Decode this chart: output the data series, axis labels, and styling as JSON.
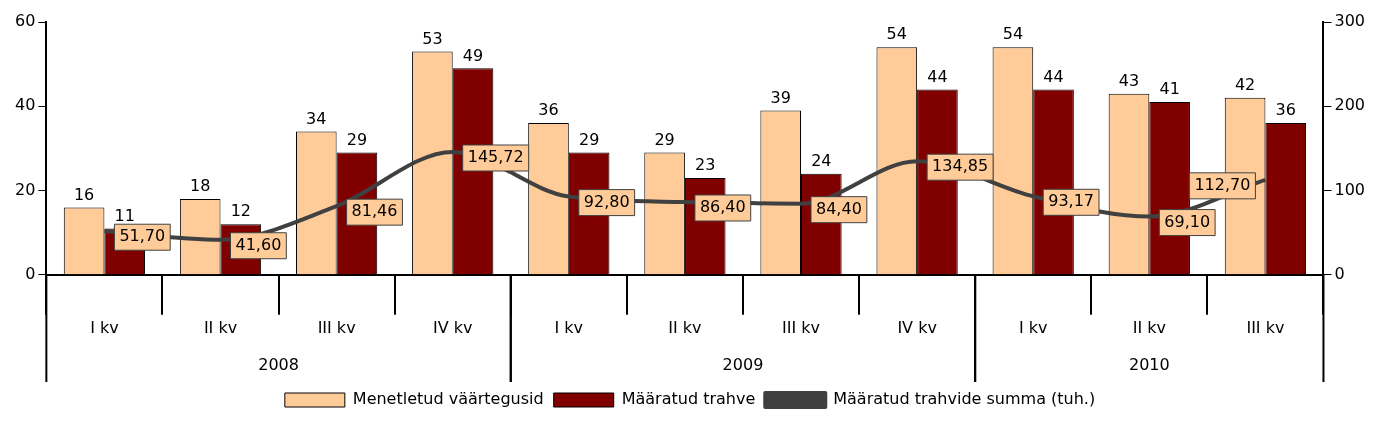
{
  "chart_data": {
    "type": "bar",
    "categories": [
      "I kv",
      "II kv",
      "III kv",
      "IV kv",
      "I kv",
      "II kv",
      "III kv",
      "IV kv",
      "I kv",
      "II kv",
      "III kv"
    ],
    "annotations": [
      "2008",
      "2009",
      "2010"
    ],
    "series": [
      {
        "name": "Menetletud väärtegusid",
        "color": "#ffcc99",
        "values": [
          16,
          18,
          34,
          53,
          36,
          29,
          39,
          54,
          54,
          43,
          42
        ]
      },
      {
        "name": "Määratud trahve",
        "color": "#800000",
        "values": [
          11,
          12,
          29,
          49,
          29,
          23,
          24,
          44,
          44,
          41,
          36
        ]
      },
      {
        "name": "Määratud trahvide summa (tuh.)",
        "type": "line",
        "axis": "y2",
        "color": "#404040",
        "values": [
          51.7,
          41.6,
          81.46,
          145.72,
          92.8,
          86.4,
          84.4,
          134.85,
          93.17,
          69.1,
          112.7
        ],
        "value_labels": [
          "51,70",
          "41,60",
          "81,46",
          "145,72",
          "92,80",
          "86,40",
          "84,40",
          "134,85",
          "93,17",
          "69,10",
          "112,70"
        ]
      }
    ],
    "ylim": [
      0,
      60
    ],
    "yticks": [
      0,
      20,
      40,
      60
    ],
    "y2lim": [
      0,
      300
    ],
    "y2ticks": [
      0,
      100,
      200,
      300
    ],
    "data_labels": true,
    "grid": false,
    "legend": "bottom",
    "line_style": "solid"
  }
}
